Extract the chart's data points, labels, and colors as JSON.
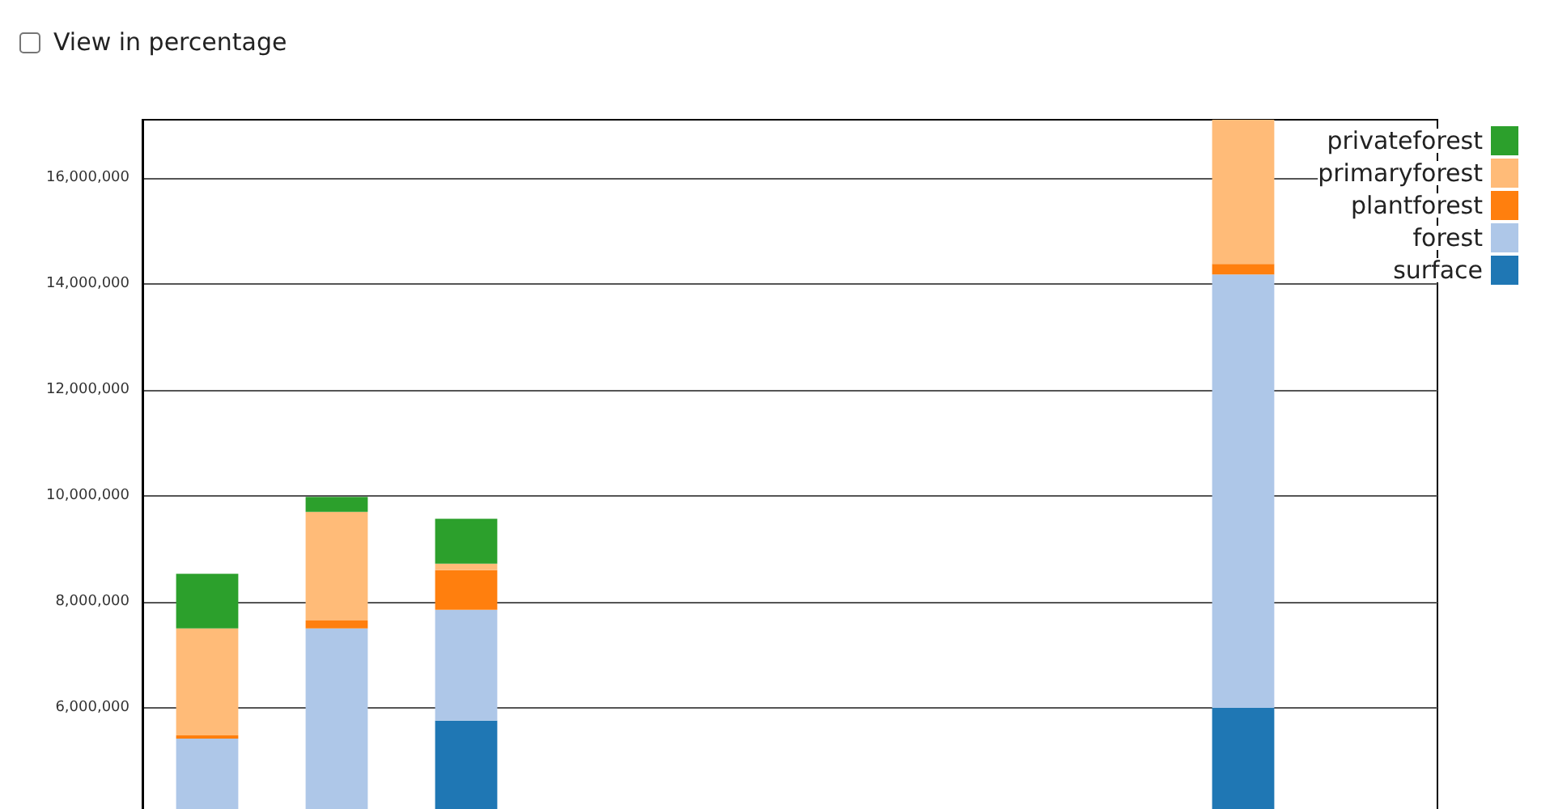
{
  "chart_data": {
    "type": "bar",
    "stacked": true,
    "categories": [
      null,
      null,
      null,
      null,
      null,
      null,
      null,
      null,
      null,
      null
    ],
    "series": [
      {
        "name": "surface",
        "color": "#1f77b4",
        "values": [
          null,
          null,
          5760000,
          null,
          null,
          null,
          null,
          null,
          6000000,
          null
        ]
      },
      {
        "name": "forest",
        "color": "#aec7e8",
        "values": [
          5420000,
          7500000,
          2090000,
          null,
          null,
          null,
          null,
          null,
          8180000,
          null
        ]
      },
      {
        "name": "plantforest",
        "color": "#ff7f0e",
        "values": [
          60000,
          150000,
          750000,
          null,
          null,
          null,
          null,
          null,
          200000,
          null
        ]
      },
      {
        "name": "primaryforest",
        "color": "#ffbb78",
        "values": [
          2020000,
          2050000,
          120000,
          null,
          null,
          null,
          null,
          null,
          2720000,
          null
        ]
      },
      {
        "name": "privateforest",
        "color": "#2ca02c",
        "values": [
          1030000,
          280000,
          850000,
          null,
          null,
          null,
          null,
          null,
          null,
          null
        ]
      }
    ],
    "ylim": [
      0,
      17100000
    ],
    "yticks": [
      {
        "value": 6000000,
        "label": "6,000,000"
      },
      {
        "value": 8000000,
        "label": "8,000,000"
      },
      {
        "value": 10000000,
        "label": "10,000,000"
      },
      {
        "value": 12000000,
        "label": "12,000,000"
      },
      {
        "value": 14000000,
        "label": "14,000,000"
      },
      {
        "value": 16000000,
        "label": "16,000,000"
      }
    ],
    "grid": "y",
    "legend": "top right",
    "annotations": [
      "View in percentage"
    ]
  }
}
